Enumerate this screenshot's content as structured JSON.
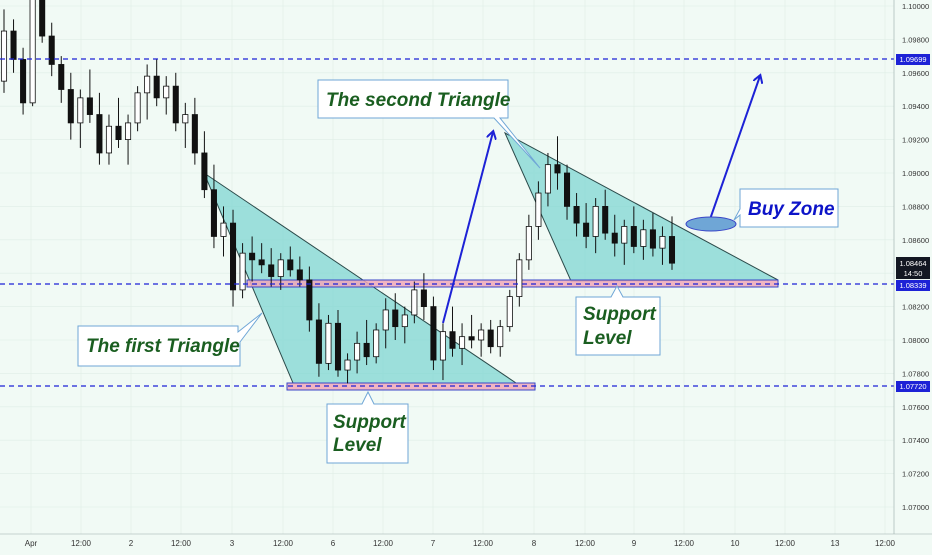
{
  "chart_data": {
    "type": "candlestick",
    "instrument_hint": "",
    "y_axis": {
      "ticks": [
        "1.10000",
        "1.09800",
        "1.09600",
        "1.09400",
        "1.09200",
        "1.09000",
        "1.08800",
        "1.08600",
        "1.08400",
        "1.08200",
        "1.08000",
        "1.07800",
        "1.07600",
        "1.07400",
        "1.07200",
        "1.07000"
      ],
      "range": [
        1.0683,
        1.1014
      ]
    },
    "x_axis": {
      "ticks": [
        "Apr",
        "12:00",
        "2",
        "12:00",
        "3",
        "12:00",
        "6",
        "12:00",
        "7",
        "12:00",
        "8",
        "12:00",
        "9",
        "12:00",
        "10",
        "12:00",
        "13",
        "12:00"
      ]
    },
    "price_labels": {
      "resistance_line": "1.09699",
      "current_price": "1.08464",
      "countdown": "14:50",
      "support_upper": "1.08339",
      "support_lower": "1.07720"
    },
    "annotations": {
      "first_triangle": "The first Triangle",
      "second_triangle": "The second Triangle",
      "support_1_line1": "Support",
      "support_1_line2": "Level",
      "support_2_line1": "Support",
      "support_2_line2": "Level",
      "buy_zone": "Buy Zone"
    },
    "candles": [
      [
        1.0955,
        1.0998,
        1.0948,
        1.0985
      ],
      [
        1.0985,
        1.0992,
        1.096,
        1.0968
      ],
      [
        1.0968,
        1.0975,
        1.0935,
        1.0942
      ],
      [
        1.0942,
        1.1012,
        1.094,
        1.1005
      ],
      [
        1.1005,
        1.1014,
        1.0978,
        1.0982
      ],
      [
        1.0982,
        1.099,
        1.0958,
        1.0965
      ],
      [
        1.0965,
        1.097,
        1.0942,
        1.095
      ],
      [
        1.095,
        1.096,
        1.092,
        1.093
      ],
      [
        1.093,
        1.095,
        1.0915,
        1.0945
      ],
      [
        1.0945,
        1.0962,
        1.093,
        1.0935
      ],
      [
        1.0935,
        1.0948,
        1.0905,
        1.0912
      ],
      [
        1.0912,
        1.0935,
        1.0905,
        1.0928
      ],
      [
        1.0928,
        1.0945,
        1.0915,
        1.092
      ],
      [
        1.092,
        1.0935,
        1.0905,
        1.093
      ],
      [
        1.093,
        1.0952,
        1.0925,
        1.0948
      ],
      [
        1.0948,
        1.0965,
        1.0932,
        1.0958
      ],
      [
        1.0958,
        1.0968,
        1.094,
        1.0945
      ],
      [
        1.0945,
        1.0958,
        1.0935,
        1.0952
      ],
      [
        1.0952,
        1.096,
        1.0925,
        1.093
      ],
      [
        1.093,
        1.0942,
        1.0915,
        1.0935
      ],
      [
        1.0935,
        1.0945,
        1.0905,
        1.0912
      ],
      [
        1.0912,
        1.0925,
        1.0885,
        1.089
      ],
      [
        1.089,
        1.0905,
        1.0855,
        1.0862
      ],
      [
        1.0862,
        1.088,
        1.085,
        1.087
      ],
      [
        1.087,
        1.0878,
        1.082,
        1.083
      ],
      [
        1.083,
        1.0858,
        1.0825,
        1.0852
      ],
      [
        1.0852,
        1.0862,
        1.0835,
        1.0848
      ],
      [
        1.0848,
        1.0858,
        1.084,
        1.0845
      ],
      [
        1.0845,
        1.0855,
        1.0832,
        1.0838
      ],
      [
        1.0838,
        1.0852,
        1.083,
        1.0848
      ],
      [
        1.0848,
        1.0856,
        1.0838,
        1.0842
      ],
      [
        1.0842,
        1.085,
        1.0832,
        1.0836
      ],
      [
        1.0836,
        1.0844,
        1.0805,
        1.0812
      ],
      [
        1.0812,
        1.0822,
        1.0778,
        1.0786
      ],
      [
        1.0786,
        1.0815,
        1.0782,
        1.081
      ],
      [
        1.081,
        1.0818,
        1.0778,
        1.0782
      ],
      [
        1.0782,
        1.0792,
        1.0774,
        1.0788
      ],
      [
        1.0788,
        1.0805,
        1.078,
        1.0798
      ],
      [
        1.0798,
        1.0812,
        1.0785,
        1.079
      ],
      [
        1.079,
        1.081,
        1.0786,
        1.0806
      ],
      [
        1.0806,
        1.0825,
        1.0795,
        1.0818
      ],
      [
        1.0818,
        1.0828,
        1.08,
        1.0808
      ],
      [
        1.0808,
        1.082,
        1.0798,
        1.0815
      ],
      [
        1.0815,
        1.0835,
        1.081,
        1.083
      ],
      [
        1.083,
        1.084,
        1.0812,
        1.082
      ],
      [
        1.082,
        1.0826,
        1.0782,
        1.0788
      ],
      [
        1.0788,
        1.081,
        1.0776,
        1.0805
      ],
      [
        1.0805,
        1.082,
        1.079,
        1.0795
      ],
      [
        1.0795,
        1.081,
        1.0785,
        1.0802
      ],
      [
        1.0802,
        1.0815,
        1.0795,
        1.08
      ],
      [
        1.08,
        1.081,
        1.079,
        1.0806
      ],
      [
        1.0806,
        1.0812,
        1.0792,
        1.0796
      ],
      [
        1.0796,
        1.0812,
        1.079,
        1.0808
      ],
      [
        1.0808,
        1.083,
        1.0805,
        1.0826
      ],
      [
        1.0826,
        1.0852,
        1.082,
        1.0848
      ],
      [
        1.0848,
        1.0875,
        1.0842,
        1.0868
      ],
      [
        1.0868,
        1.0895,
        1.086,
        1.0888
      ],
      [
        1.0888,
        1.0912,
        1.088,
        1.0905
      ],
      [
        1.0905,
        1.0922,
        1.089,
        1.09
      ],
      [
        1.09,
        1.0905,
        1.0872,
        1.088
      ],
      [
        1.088,
        1.0888,
        1.0862,
        1.087
      ],
      [
        1.087,
        1.0882,
        1.0855,
        1.0862
      ],
      [
        1.0862,
        1.0885,
        1.0852,
        1.088
      ],
      [
        1.088,
        1.089,
        1.086,
        1.0864
      ],
      [
        1.0864,
        1.0875,
        1.085,
        1.0858
      ],
      [
        1.0858,
        1.0872,
        1.0845,
        1.0868
      ],
      [
        1.0868,
        1.088,
        1.0852,
        1.0856
      ],
      [
        1.0856,
        1.0872,
        1.0848,
        1.0866
      ],
      [
        1.0866,
        1.0876,
        1.085,
        1.0855
      ],
      [
        1.0855,
        1.0868,
        1.0845,
        1.0862
      ],
      [
        1.0862,
        1.0874,
        1.0842,
        1.0846
      ]
    ]
  }
}
